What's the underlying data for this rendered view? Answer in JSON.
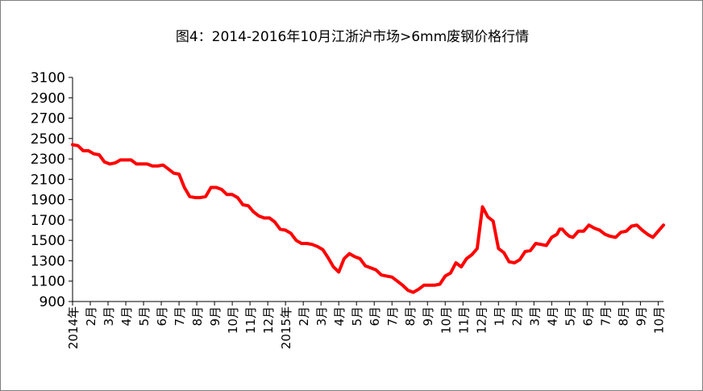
{
  "chart_data": {
    "type": "line",
    "title": "图4：2014-2016年10月江浙沪市场>6mm废钢价格行情",
    "xlabel": "",
    "ylabel": "",
    "ylim": [
      900,
      3100
    ],
    "yticks": [
      900,
      1100,
      1300,
      1500,
      1700,
      1900,
      2100,
      2300,
      2500,
      2700,
      2900,
      3100
    ],
    "xticks": [
      "2014年",
      "2月",
      "3月",
      "4月",
      "5月",
      "6月",
      "7月",
      "8月",
      "9月",
      "10月",
      "11月",
      "12月",
      "2015年",
      "2月",
      "3月",
      "4月",
      "5月",
      "6月",
      "7月",
      "8月",
      "9月",
      "10月",
      "11月",
      "12月",
      "1月",
      "2月",
      "3月",
      "4月",
      "5月",
      "6月",
      "7月",
      "8月",
      "9月",
      "10月"
    ],
    "xlim": [
      0,
      33.3
    ],
    "grid": false,
    "legend": "none",
    "series": [
      {
        "color": "#ff0000",
        "x": [
          0,
          0.3,
          0.6,
          0.9,
          1.2,
          1.5,
          1.8,
          2.1,
          2.4,
          2.7,
          3.0,
          3.3,
          3.6,
          3.9,
          4.2,
          4.5,
          4.8,
          5.1,
          5.4,
          5.7,
          6.0,
          6.3,
          6.6,
          6.9,
          7.2,
          7.5,
          7.8,
          8.1,
          8.4,
          8.7,
          9.0,
          9.3,
          9.6,
          9.9,
          10.2,
          10.5,
          10.8,
          11.1,
          11.4,
          11.7,
          12.0,
          12.3,
          12.6,
          12.9,
          13.2,
          13.5,
          13.8,
          14.1,
          14.4,
          14.7,
          15.0,
          15.3,
          15.6,
          15.9,
          16.2,
          16.5,
          16.8,
          17.1,
          17.4,
          17.7,
          18.0,
          18.3,
          18.6,
          18.9,
          19.2,
          19.5,
          19.8,
          20.1,
          20.4,
          20.7,
          21.0,
          21.3,
          21.6,
          21.9,
          22.2,
          22.5,
          22.8,
          23.1,
          23.4,
          23.7,
          24.0,
          24.3,
          24.6,
          24.9,
          25.2,
          25.5,
          25.8,
          26.1,
          26.4,
          26.7,
          27.0,
          27.3,
          27.45,
          27.6,
          27.8,
          28.0,
          28.2,
          28.5,
          28.8,
          29.1,
          29.4,
          29.7,
          30.0,
          30.3,
          30.6,
          30.9,
          31.2,
          31.5,
          31.8,
          32.1,
          32.4,
          32.7,
          33.0,
          33.3
        ],
        "y": [
          2440,
          2430,
          2380,
          2380,
          2350,
          2340,
          2270,
          2250,
          2260,
          2290,
          2290,
          2290,
          2250,
          2250,
          2250,
          2230,
          2230,
          2240,
          2200,
          2160,
          2150,
          2020,
          1930,
          1920,
          1920,
          1930,
          2020,
          2020,
          2000,
          1950,
          1950,
          1920,
          1850,
          1840,
          1780,
          1740,
          1720,
          1720,
          1680,
          1610,
          1600,
          1570,
          1500,
          1470,
          1470,
          1460,
          1440,
          1410,
          1330,
          1240,
          1190,
          1320,
          1370,
          1340,
          1320,
          1250,
          1230,
          1210,
          1160,
          1150,
          1140,
          1100,
          1060,
          1010,
          990,
          1020,
          1060,
          1060,
          1060,
          1070,
          1150,
          1180,
          1280,
          1240,
          1320,
          1360,
          1420,
          1830,
          1730,
          1690,
          1420,
          1380,
          1290,
          1280,
          1310,
          1390,
          1400,
          1470,
          1460,
          1450,
          1530,
          1560,
          1610,
          1610,
          1570,
          1540,
          1530,
          1590,
          1590,
          1650,
          1620,
          1600,
          1560,
          1540,
          1530,
          1580,
          1590,
          1640,
          1650,
          1600,
          1560,
          1530,
          1590,
          1650
        ]
      }
    ]
  }
}
